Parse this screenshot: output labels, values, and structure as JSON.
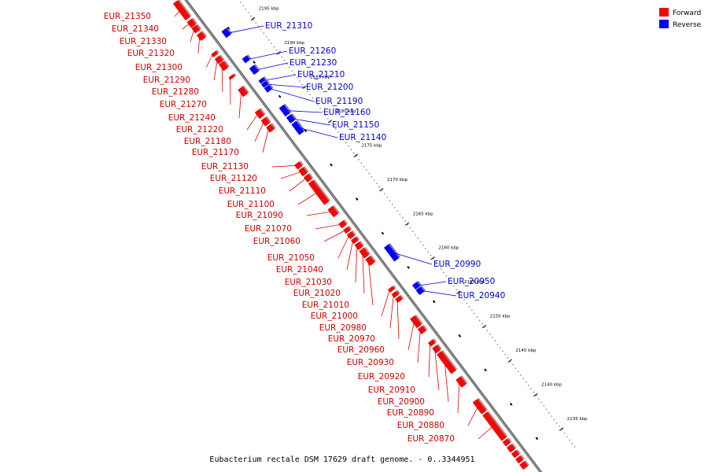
{
  "caption": "Eubacterium rectale DSM 17629 draft genome. - 0..3344951",
  "legend": [
    {
      "label": "Forward",
      "color": "#ff0000"
    },
    {
      "label": "Reverse",
      "color": "#0000ff"
    }
  ],
  "colors": {
    "forward_fill": "#ff0000",
    "forward_label": "#cc0000",
    "reverse_fill": "#0000ff",
    "reverse_label": "#0000cc",
    "backbone": "#888888",
    "tick": "#000000"
  },
  "kbp_ticks": [
    {
      "kbp": 2200,
      "label": "2200 kbp"
    },
    {
      "kbp": 2195,
      "label": "2195 kbp"
    },
    {
      "kbp": 2190,
      "label": "2190 kbp"
    },
    {
      "kbp": 2185,
      "label": "2185 kbp"
    },
    {
      "kbp": 2180,
      "label": "2180 kbp"
    },
    {
      "kbp": 2175,
      "label": "2175 kbp"
    },
    {
      "kbp": 2170,
      "label": "2170 kbp"
    },
    {
      "kbp": 2165,
      "label": "2165 kbp"
    },
    {
      "kbp": 2160,
      "label": "2160 kbp"
    },
    {
      "kbp": 2155,
      "label": "2155 kbp"
    },
    {
      "kbp": 2150,
      "label": "2150 kbp"
    },
    {
      "kbp": 2145,
      "label": "2145 kbp"
    },
    {
      "kbp": 2140,
      "label": "2140 kbp"
    },
    {
      "kbp": 2135,
      "label": "2135 kbp"
    }
  ],
  "forward_genes": [
    {
      "id": "EUR_21350",
      "s": 2202.0,
      "e": 2199.6
    },
    {
      "id": "EUR_21340",
      "s": 2199.3,
      "e": 2198.5
    },
    {
      "id": "EUR_21330",
      "s": 2198.4,
      "e": 2197.7
    },
    {
      "id": "EUR_21320",
      "s": 2197.4,
      "e": 2196.6
    },
    {
      "id": "EUR_21300",
      "s": 2194.6,
      "e": 2194.2
    },
    {
      "id": "EUR_21290",
      "s": 2193.9,
      "e": 2193.2
    },
    {
      "id": "EUR_21280",
      "s": 2193.1,
      "e": 2192.2
    },
    {
      "id": "EUR_21270",
      "s": 2191.2,
      "e": 2190.9
    },
    {
      "id": "EUR_21240",
      "s": 2189.4,
      "e": 2188.4
    },
    {
      "id": "EUR_21220",
      "s": 2186.1,
      "e": 2185.2
    },
    {
      "id": "EUR_21180",
      "s": 2184.9,
      "e": 2184.1
    },
    {
      "id": "EUR_21170",
      "s": 2183.9,
      "e": 2183.2
    },
    {
      "id": "EUR_21130",
      "s": 2178.4,
      "e": 2177.8
    },
    {
      "id": "EUR_21120",
      "s": 2177.6,
      "e": 2176.8
    },
    {
      "id": "EUR_21110",
      "s": 2176.6,
      "e": 2175.9
    },
    {
      "id": "EUR_21100",
      "s": 2175.7,
      "e": 2172.6
    },
    {
      "id": "EUR_21090",
      "s": 2171.9,
      "e": 2170.8
    },
    {
      "id": "EUR_21070",
      "s": 2169.8,
      "e": 2169.2
    },
    {
      "id": "EUR_21060",
      "s": 2168.9,
      "e": 2168.4
    },
    {
      "id": "EUR_21050",
      "s": 2168.2,
      "e": 2167.6
    },
    {
      "id": "EUR_21040",
      "s": 2167.4,
      "e": 2166.9
    },
    {
      "id": "EUR_21030",
      "s": 2166.7,
      "e": 2166.0
    },
    {
      "id": "EUR_21020",
      "s": 2165.8,
      "e": 2164.8
    },
    {
      "id": "EUR_21010",
      "s": 2164.6,
      "e": 2163.7
    },
    {
      "id": "EUR_21000",
      "s": 2160.2,
      "e": 2159.8
    },
    {
      "id": "EUR_20980",
      "s": 2159.5,
      "e": 2159.0
    },
    {
      "id": "EUR_20970",
      "s": 2158.8,
      "e": 2158.3
    },
    {
      "id": "EUR_20960",
      "s": 2155.9,
      "e": 2154.6
    },
    {
      "id": "EUR_20930",
      "s": 2154.4,
      "e": 2153.7
    },
    {
      "id": "EUR_20920",
      "s": 2152.4,
      "e": 2151.9
    },
    {
      "id": "EUR_20910",
      "s": 2151.6,
      "e": 2150.9
    },
    {
      "id": "EUR_20900",
      "s": 2150.7,
      "e": 2147.9
    },
    {
      "id": "EUR_20890",
      "s": 2147.0,
      "e": 2145.9
    },
    {
      "id": "EUR_20880",
      "s": 2143.7,
      "e": 2142.0
    },
    {
      "id": "EUR_20870",
      "s": 2141.8,
      "e": 2138.1
    }
  ],
  "forward_extra": [
    {
      "s": 2137.9,
      "e": 2137.3
    },
    {
      "s": 2137.1,
      "e": 2136.4
    },
    {
      "s": 2136.2,
      "e": 2135.6
    },
    {
      "s": 2135.4,
      "e": 2134.8
    },
    {
      "s": 2134.6,
      "e": 2133.9
    }
  ],
  "reverse_genes": [
    {
      "id": "EUR_21310",
      "s": 2196.0,
      "e": 2195.1
    },
    {
      "id": "EUR_21260",
      "s": 2192.0,
      "e": 2191.4
    },
    {
      "id": "EUR_21230",
      "s": 2190.6,
      "e": 2189.7
    },
    {
      "id": "EUR_21210",
      "s": 2188.8,
      "e": 2188.4
    },
    {
      "id": "EUR_21200",
      "s": 2188.3,
      "e": 2187.8
    },
    {
      "id": "EUR_21190",
      "s": 2187.7,
      "e": 2187.1
    },
    {
      "id": "EUR_21160",
      "s": 2184.8,
      "e": 2183.6
    },
    {
      "id": "EUR_21150",
      "s": 2183.4,
      "e": 2182.6
    },
    {
      "id": "EUR_21140",
      "s": 2182.4,
      "e": 2180.9
    },
    {
      "id": "EUR_20990",
      "s": 2164.4,
      "e": 2162.4
    },
    {
      "id": "EUR_20950",
      "s": 2158.9,
      "e": 2158.3
    },
    {
      "id": "EUR_20940",
      "s": 2158.2,
      "e": 2157.5
    }
  ]
}
